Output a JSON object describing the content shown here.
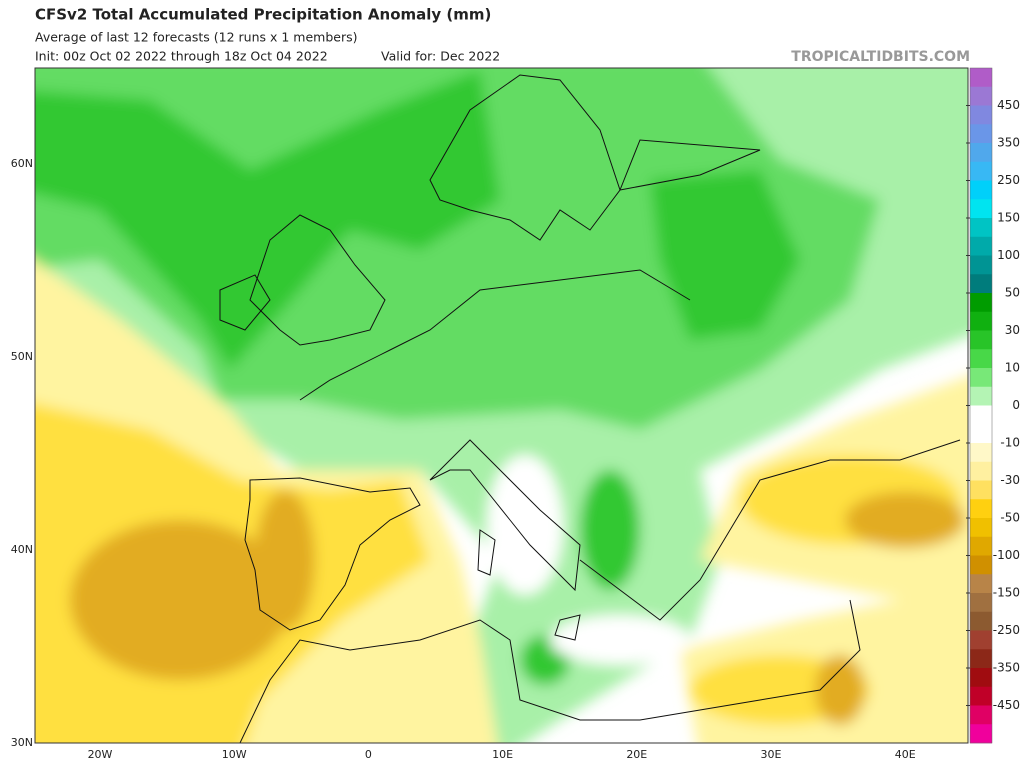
{
  "header": {
    "title": "CFSv2 Total Accumulated Precipitation Anomaly (mm)",
    "subtitle": "Average of last 12 forecasts (12 runs x 1 members)",
    "init": "Init: 00z Oct 02 2022 through 18z Oct 04 2022",
    "valid": "Valid for: Dec 2022",
    "source": "TROPICALTIDBITS.COM"
  },
  "map": {
    "lat_labels": [
      "60N",
      "50N",
      "40N",
      "30N"
    ],
    "lon_labels": [
      "20W",
      "10W",
      "0",
      "10E",
      "20E",
      "30E",
      "40E"
    ]
  },
  "colorbar": {
    "labels": [
      450,
      350,
      250,
      150,
      100,
      50,
      30,
      10,
      0,
      -10,
      -30,
      -50,
      -100,
      -150,
      -250,
      -350,
      -450
    ],
    "colors": [
      "#b05cc8",
      "#9b78d4",
      "#8088e0",
      "#6a96e8",
      "#50a8ec",
      "#38b8f4",
      "#00d0fa",
      "#00e4f0",
      "#00c4c4",
      "#00aaaa",
      "#009494",
      "#007c7c",
      "#009c00",
      "#10b010",
      "#28c428",
      "#48d848",
      "#78e878",
      "#b4f4b4",
      "#ffffff",
      "#ffffff",
      "#fff8c8",
      "#fff0a0",
      "#ffe060",
      "#ffd010",
      "#f0c000",
      "#e0a800",
      "#d09000",
      "#b88448",
      "#a07040",
      "#8c5a30",
      "#a04030",
      "#8c2818",
      "#a00c10",
      "#c00028",
      "#e00064",
      "#f0009c"
    ]
  }
}
